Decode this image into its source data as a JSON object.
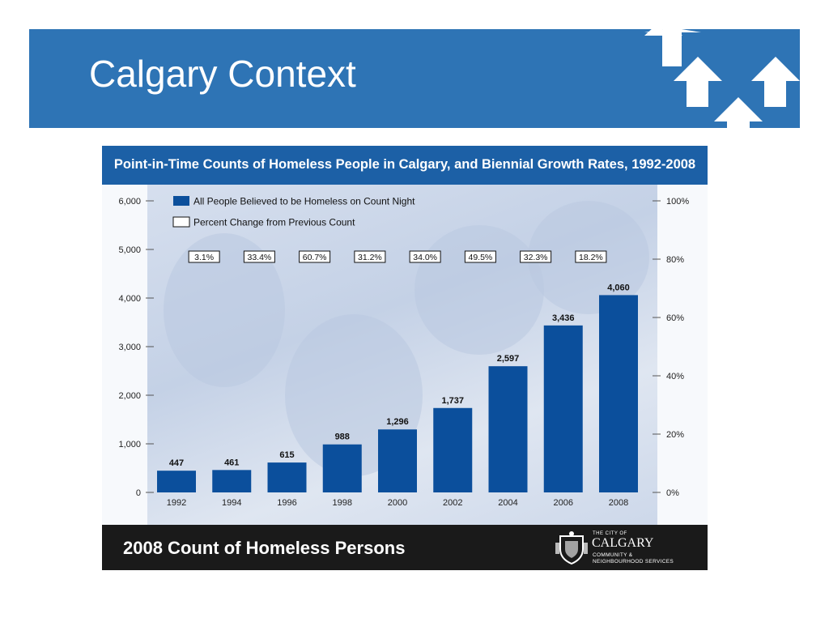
{
  "slide": {
    "title": "Calgary Context",
    "colors": {
      "header": "#2e74b5",
      "arrows": "#ffffff"
    },
    "icons": [
      "arrow-up-icon"
    ]
  },
  "figure": {
    "title": "Point-in-Time Counts of Homeless People in Calgary, and Biennial Growth Rates, 1992-2008",
    "footer": "2008 Count of Homeless Persons",
    "org_small": "THE CITY OF",
    "org_name": "CALGARY",
    "org_dept_line1": "COMMUNITY &",
    "org_dept_line2": "NEIGHBOURHOOD SERVICES",
    "org_icon": "city-crest-icon",
    "colors": {
      "title_bar": "#1c60a6",
      "bars": "#0b4f9c",
      "footer_bar": "#1a1a1a"
    }
  },
  "chart_data": {
    "type": "bar",
    "title": "Point-in-Time Counts of Homeless People in Calgary, and Biennial Growth Rates, 1992-2008",
    "categories": [
      "1992",
      "1994",
      "1996",
      "1998",
      "2000",
      "2002",
      "2004",
      "2006",
      "2008"
    ],
    "series": [
      {
        "name": "All People Believed to be Homeless on Count Night",
        "values": [
          447,
          461,
          615,
          988,
          1296,
          1737,
          2597,
          3436,
          4060
        ]
      }
    ],
    "value_labels": [
      "447",
      "461",
      "615",
      "988",
      "1,296",
      "1,737",
      "2,597",
      "3,436",
      "4,060"
    ],
    "percent_change": {
      "name": "Percent Change from Previous Count",
      "labels": [
        "3.1%",
        "33.4%",
        "60.7%",
        "31.2%",
        "34.0%",
        "49.5%",
        "32.3%",
        "18.2%"
      ]
    },
    "ylim": [
      0,
      6000
    ],
    "yticks": [
      "0",
      "1,000",
      "2,000",
      "3,000",
      "4,000",
      "5,000",
      "6,000"
    ],
    "y2lim": [
      0,
      100
    ],
    "y2ticks": [
      "0%",
      "20%",
      "40%",
      "60%",
      "80%",
      "100%"
    ],
    "legend_position": "top-left",
    "grid": false
  }
}
